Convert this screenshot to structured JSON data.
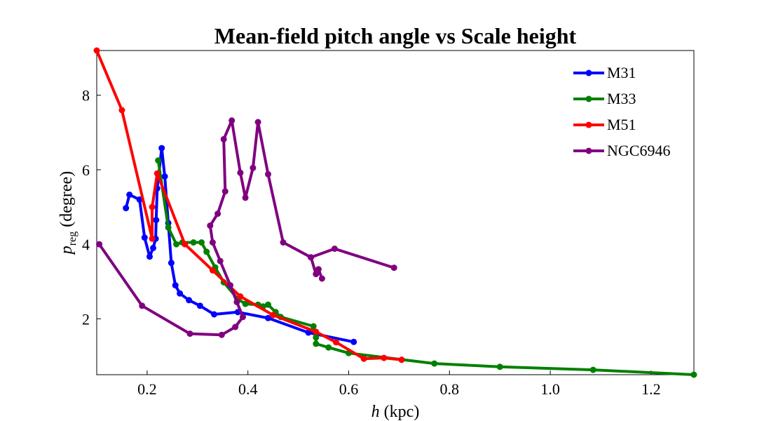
{
  "chart_data": {
    "type": "line",
    "title": "Mean-field pitch angle vs Scale height",
    "xlabel": {
      "var": "h",
      "rest": " (kpc)"
    },
    "ylabel": {
      "var": "p",
      "sub": "reg",
      "rest": " (degree)"
    },
    "xlim": [
      0.1,
      1.285
    ],
    "ylim": [
      0.5,
      9.2
    ],
    "xticks": [
      0.2,
      0.4,
      0.6,
      0.8,
      1.0,
      1.2
    ],
    "xtick_labels": [
      "0.2",
      "0.4",
      "0.6",
      "0.8",
      "1.0",
      "1.2"
    ],
    "yticks": [
      2,
      4,
      6,
      8
    ],
    "ytick_labels": [
      "2",
      "4",
      "6",
      "8"
    ],
    "legend_position": "top-right",
    "grid": false,
    "series": [
      {
        "name": "M31",
        "color": "#0000ff",
        "points": [
          [
            0.158,
            4.97
          ],
          [
            0.165,
            5.33
          ],
          [
            0.185,
            5.2
          ],
          [
            0.195,
            4.18
          ],
          [
            0.205,
            3.67
          ],
          [
            0.212,
            3.9
          ],
          [
            0.217,
            4.15
          ],
          [
            0.218,
            4.65
          ],
          [
            0.22,
            5.5
          ],
          [
            0.229,
            6.58
          ],
          [
            0.235,
            5.82
          ],
          [
            0.242,
            4.57
          ],
          [
            0.248,
            3.5
          ],
          [
            0.256,
            2.9
          ],
          [
            0.265,
            2.68
          ],
          [
            0.283,
            2.5
          ],
          [
            0.305,
            2.35
          ],
          [
            0.333,
            2.12
          ],
          [
            0.38,
            2.18
          ],
          [
            0.44,
            2.02
          ],
          [
            0.52,
            1.63
          ],
          [
            0.61,
            1.38
          ]
        ]
      },
      {
        "name": "M33",
        "color": "#008000",
        "points": [
          [
            0.222,
            6.25
          ],
          [
            0.242,
            4.45
          ],
          [
            0.258,
            4.0
          ],
          [
            0.27,
            4.05
          ],
          [
            0.292,
            4.05
          ],
          [
            0.308,
            4.05
          ],
          [
            0.318,
            3.8
          ],
          [
            0.335,
            3.38
          ],
          [
            0.352,
            2.98
          ],
          [
            0.38,
            2.53
          ],
          [
            0.395,
            2.4
          ],
          [
            0.42,
            2.38
          ],
          [
            0.43,
            2.33
          ],
          [
            0.44,
            2.38
          ],
          [
            0.455,
            2.18
          ],
          [
            0.465,
            2.05
          ],
          [
            0.53,
            1.8
          ],
          [
            0.535,
            1.5
          ],
          [
            0.535,
            1.33
          ],
          [
            0.56,
            1.23
          ],
          [
            0.6,
            1.08
          ],
          [
            0.77,
            0.8
          ],
          [
            0.9,
            0.71
          ],
          [
            1.085,
            0.63
          ],
          [
            1.285,
            0.5
          ]
        ]
      },
      {
        "name": "M51",
        "color": "#ff0000",
        "points": [
          [
            0.1,
            9.2
          ],
          [
            0.15,
            7.6
          ],
          [
            0.21,
            4.15
          ],
          [
            0.21,
            5.0
          ],
          [
            0.22,
            5.9
          ],
          [
            0.275,
            4.0
          ],
          [
            0.33,
            3.3
          ],
          [
            0.385,
            2.6
          ],
          [
            0.45,
            2.1
          ],
          [
            0.535,
            1.65
          ],
          [
            0.575,
            1.37
          ],
          [
            0.63,
            0.93
          ],
          [
            0.67,
            0.95
          ],
          [
            0.705,
            0.9
          ]
        ]
      },
      {
        "name": "NGC6946",
        "color": "#800080",
        "points": [
          [
            0.105,
            4.0
          ],
          [
            0.19,
            2.35
          ],
          [
            0.285,
            1.6
          ],
          [
            0.348,
            1.57
          ],
          [
            0.375,
            1.78
          ],
          [
            0.39,
            2.05
          ],
          [
            0.378,
            2.45
          ],
          [
            0.365,
            2.9
          ],
          [
            0.345,
            3.55
          ],
          [
            0.33,
            4.05
          ],
          [
            0.325,
            4.5
          ],
          [
            0.34,
            4.82
          ],
          [
            0.355,
            5.42
          ],
          [
            0.352,
            6.82
          ],
          [
            0.368,
            7.32
          ],
          [
            0.385,
            5.92
          ],
          [
            0.395,
            5.25
          ],
          [
            0.41,
            6.05
          ],
          [
            0.42,
            7.28
          ],
          [
            0.44,
            5.88
          ],
          [
            0.47,
            4.05
          ],
          [
            0.525,
            3.65
          ],
          [
            0.572,
            3.88
          ],
          [
            0.69,
            3.37
          ]
        ]
      }
    ]
  },
  "tail": [
    [
      [
        0.525,
        3.65
      ],
      [
        0.535,
        3.2
      ],
      [
        0.54,
        3.33
      ],
      [
        0.547,
        3.08
      ]
    ]
  ]
}
